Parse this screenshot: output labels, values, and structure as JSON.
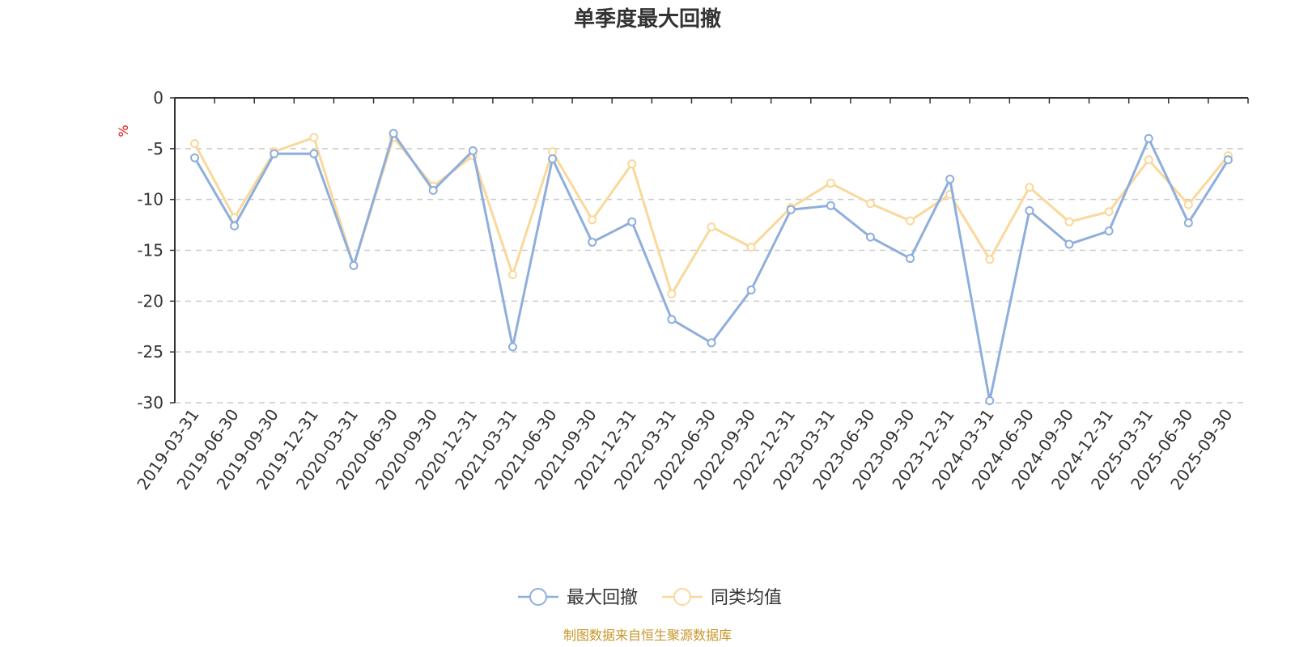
{
  "chart_data": {
    "type": "line",
    "title": "单季度最大回撤",
    "ylabel": "%",
    "ylim": [
      -30,
      0
    ],
    "yticks": [
      0,
      -5,
      -10,
      -15,
      -20,
      -25,
      -30
    ],
    "grid": true,
    "legend_position": "bottom",
    "categories": [
      "2019-03-31",
      "2019-06-30",
      "2019-09-30",
      "2019-12-31",
      "2020-03-31",
      "2020-06-30",
      "2020-09-30",
      "2020-12-31",
      "2021-03-31",
      "2021-06-30",
      "2021-09-30",
      "2021-12-31",
      "2022-03-31",
      "2022-06-30",
      "2022-09-30",
      "2022-12-31",
      "2023-03-31",
      "2023-06-30",
      "2023-09-30",
      "2023-12-31",
      "2024-03-31",
      "2024-06-30",
      "2024-09-30",
      "2024-12-31",
      "2025-03-31",
      "2025-06-30",
      "2025-09-30"
    ],
    "series": [
      {
        "name": "最大回撤",
        "color": "#8eaedc",
        "values": [
          -5.9,
          -12.6,
          -5.5,
          -5.5,
          -16.5,
          -3.5,
          -9.1,
          -5.2,
          -24.5,
          -6.0,
          -14.2,
          -12.2,
          -21.8,
          -24.1,
          -18.9,
          -11.0,
          -10.6,
          -13.7,
          -15.8,
          -8.0,
          -29.8,
          -11.1,
          -14.4,
          -13.1,
          -4.0,
          -12.3,
          -6.1
        ]
      },
      {
        "name": "同类均值",
        "color": "#fad89a",
        "values": [
          -4.5,
          -11.8,
          -5.3,
          -3.9,
          -16.5,
          -3.9,
          -8.7,
          -5.7,
          -17.4,
          -5.3,
          -12.0,
          -6.5,
          -19.3,
          -12.7,
          -14.7,
          -10.8,
          -8.4,
          -10.4,
          -12.1,
          -9.5,
          -15.9,
          -8.8,
          -12.2,
          -11.2,
          -6.1,
          -10.5,
          -5.7
        ]
      }
    ]
  },
  "footer": {
    "source": "制图数据来自恒生聚源数据库"
  }
}
